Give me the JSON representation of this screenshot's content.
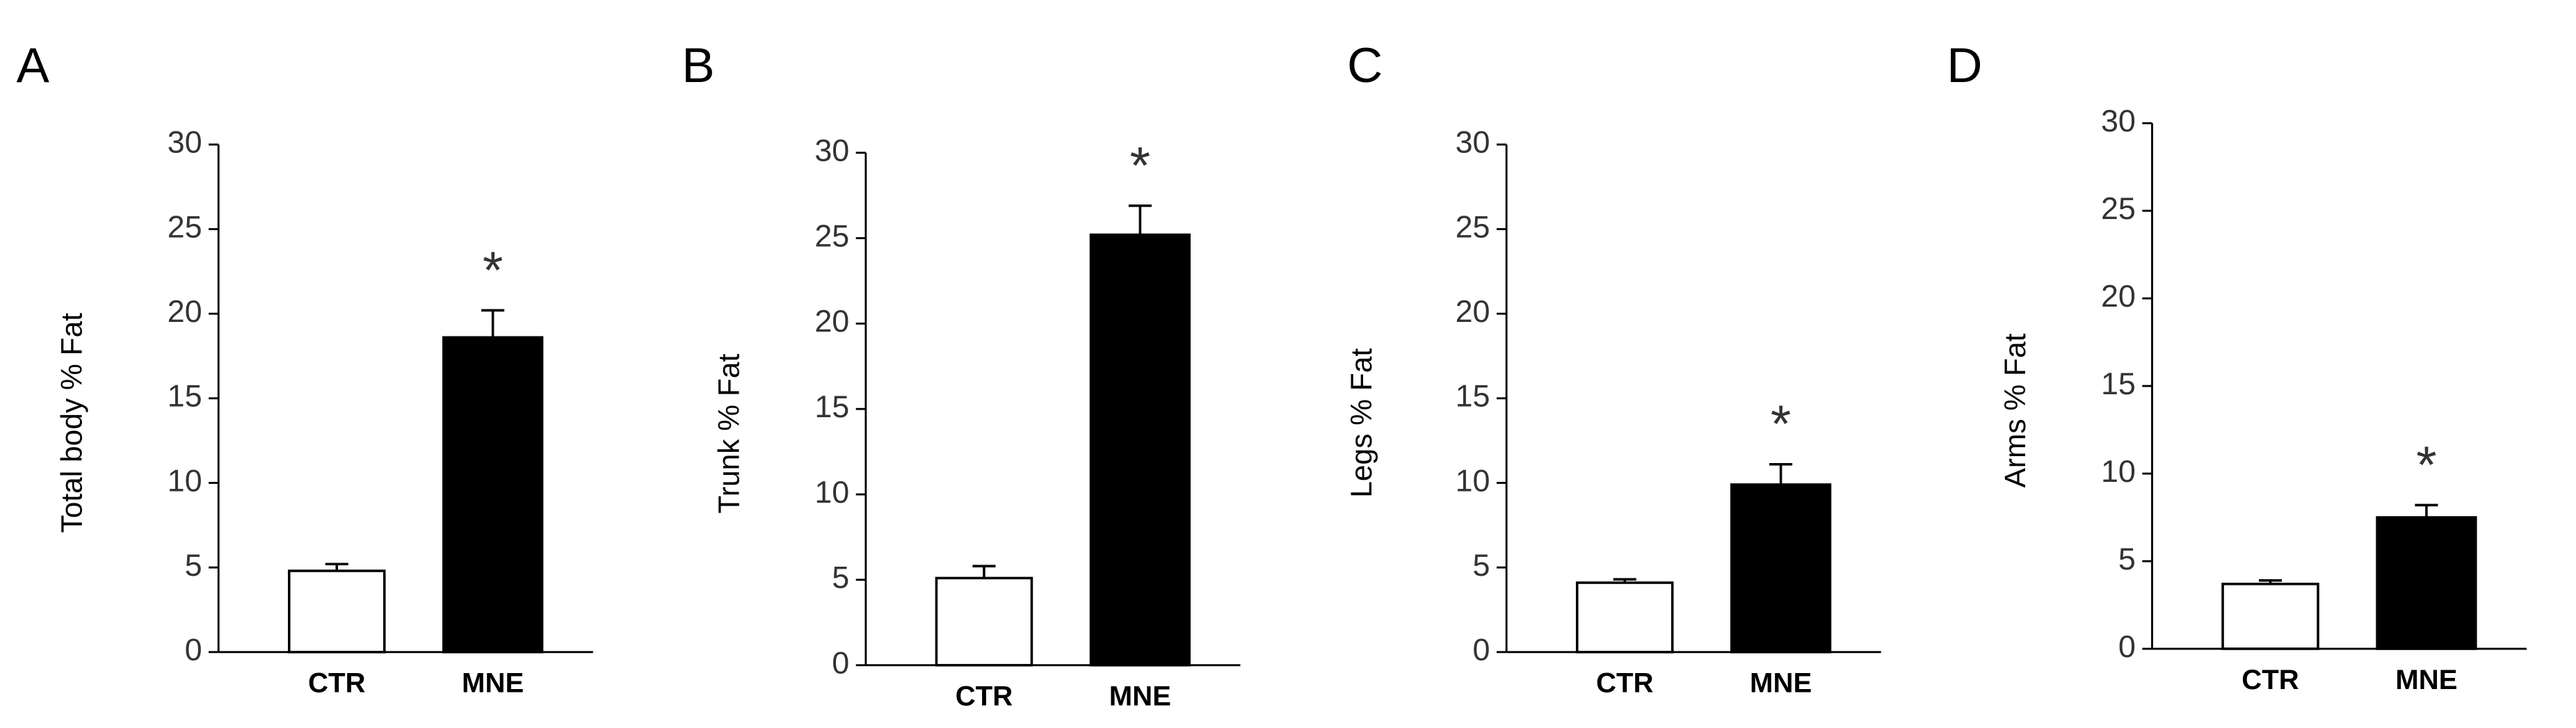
{
  "chart_data": [
    {
      "type": "bar",
      "panel": "A",
      "ylabel": "Total body % Fat",
      "categories": [
        "CTR",
        "MNE"
      ],
      "values": [
        4.8,
        18.6
      ],
      "errors": [
        0.4,
        1.6
      ],
      "colors": [
        "#ffffff",
        "#000000"
      ],
      "annotations": [
        null,
        "*"
      ],
      "ylim": [
        0,
        30
      ],
      "yticks": [
        0,
        5,
        10,
        15,
        20,
        25,
        30
      ]
    },
    {
      "type": "bar",
      "panel": "B",
      "ylabel": "Trunk % Fat",
      "categories": [
        "CTR",
        "MNE"
      ],
      "values": [
        5.1,
        25.2
      ],
      "errors": [
        0.7,
        1.7
      ],
      "colors": [
        "#ffffff",
        "#000000"
      ],
      "annotations": [
        null,
        "*"
      ],
      "ylim": [
        0,
        30
      ],
      "yticks": [
        0,
        5,
        10,
        15,
        20,
        25,
        30
      ]
    },
    {
      "type": "bar",
      "panel": "C",
      "ylabel": "Legs % Fat",
      "categories": [
        "CTR",
        "MNE"
      ],
      "values": [
        4.1,
        9.9
      ],
      "errors": [
        0.2,
        1.2
      ],
      "colors": [
        "#ffffff",
        "#000000"
      ],
      "annotations": [
        null,
        "*"
      ],
      "ylim": [
        0,
        30
      ],
      "yticks": [
        0,
        5,
        10,
        15,
        20,
        25,
        30
      ]
    },
    {
      "type": "bar",
      "panel": "D",
      "ylabel": "Arms % Fat",
      "categories": [
        "CTR",
        "MNE"
      ],
      "values": [
        3.7,
        7.5
      ],
      "errors": [
        0.2,
        0.7
      ],
      "colors": [
        "#ffffff",
        "#000000"
      ],
      "annotations": [
        null,
        "*"
      ],
      "ylim": [
        0,
        30
      ],
      "yticks": [
        0,
        5,
        10,
        15,
        20,
        25,
        30
      ]
    }
  ]
}
